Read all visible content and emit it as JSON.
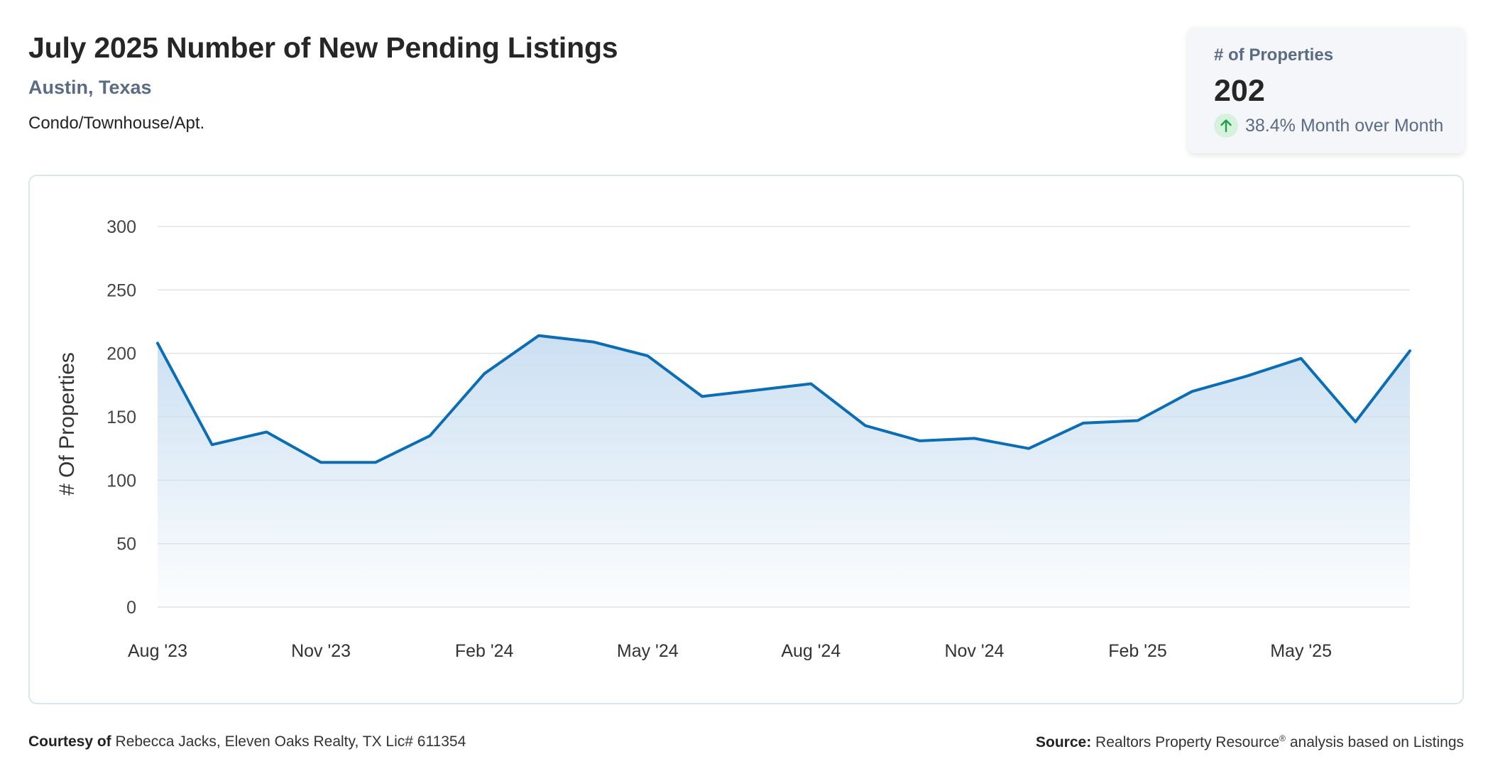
{
  "header": {
    "title": "July 2025 Number of New Pending Listings",
    "location": "Austin, Texas",
    "property_type": "Condo/Townhouse/Apt."
  },
  "kpi": {
    "label": "# of Properties",
    "value": "202",
    "change": "38.4% Month over Month",
    "icon": "arrow-up-icon",
    "icon_color": "#1e9e4a"
  },
  "chart_data": {
    "type": "area",
    "ylabel": "# Of Properties",
    "xlabel": "",
    "ylim": [
      0,
      300
    ],
    "yticks": [
      0,
      50,
      100,
      150,
      200,
      250,
      300
    ],
    "grid": true,
    "line_color": "#0b6db4",
    "fill_color": "#c9def1",
    "x": [
      "Aug '23",
      "Sep '23",
      "Oct '23",
      "Nov '23",
      "Dec '23",
      "Jan '24",
      "Feb '24",
      "Mar '24",
      "Apr '24",
      "May '24",
      "Jun '24",
      "Jul '24",
      "Aug '24",
      "Sep '24",
      "Oct '24",
      "Nov '24",
      "Dec '24",
      "Jan '25",
      "Feb '25",
      "Mar '25",
      "Apr '25",
      "May '25",
      "Jun '25",
      "Jul '25"
    ],
    "x_tick_labels": [
      "Aug '23",
      "Nov '23",
      "Feb '24",
      "May '24",
      "Aug '24",
      "Nov '24",
      "Feb '25",
      "May '25"
    ],
    "x_tick_indices": [
      0,
      3,
      6,
      9,
      12,
      15,
      18,
      21
    ],
    "values": [
      208,
      128,
      138,
      114,
      114,
      135,
      184,
      214,
      209,
      198,
      166,
      171,
      176,
      143,
      131,
      133,
      125,
      145,
      147,
      170,
      182,
      196,
      146,
      202
    ]
  },
  "footer": {
    "courtesy_label": "Courtesy of",
    "courtesy_text": "Rebecca Jacks, Eleven Oaks Realty, TX Lic# 611354",
    "source_label": "Source:",
    "source_text": "Realtors Property Resource",
    "source_mark": "®",
    "source_suffix": "analysis based on Listings"
  }
}
